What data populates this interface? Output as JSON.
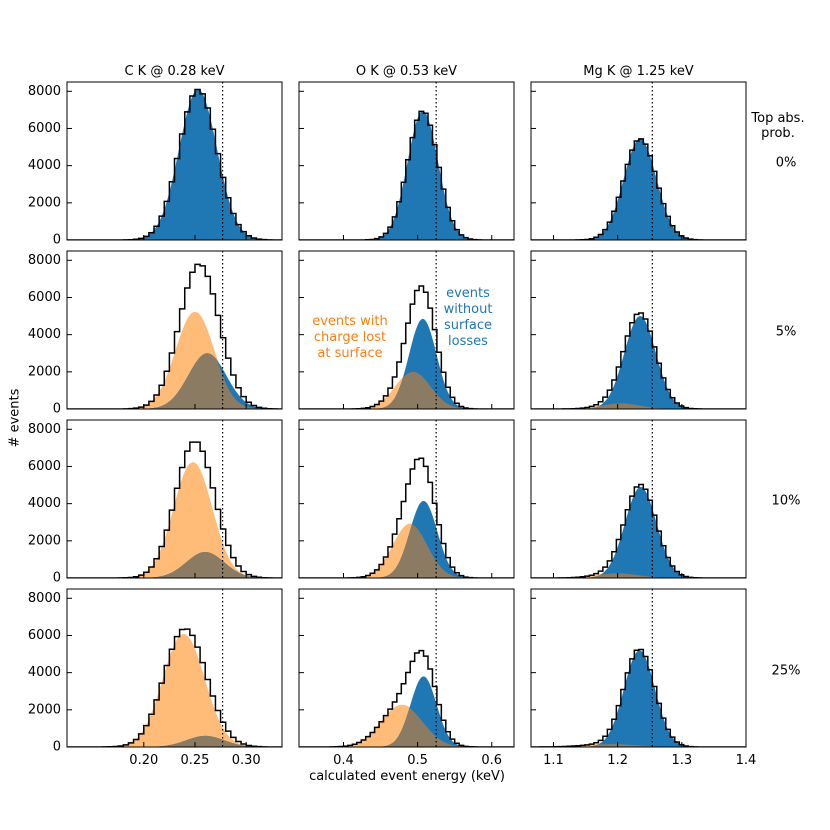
{
  "figure": {
    "ylabel": "# events",
    "xlabel": "calculated event energy (keV)",
    "row_header_title": "Top abs.\nprob.",
    "annotations": {
      "surface": "events with\ncharge lost\nat surface",
      "nosurface": "events\nwithout\nsurface\nlosses"
    }
  },
  "colors": {
    "blue": "#1f77b4",
    "orange": "#ffbb78",
    "overlap": "#8c7b63",
    "outline": "#000000",
    "orange_text": "#ff7f0e",
    "blue_text": "#1f77b4"
  },
  "chart_data": {
    "type": "histogram_grid",
    "columns": [
      {
        "title": "C K @ 0.28 keV",
        "line_energy": 0.277,
        "xlim": [
          0.125,
          0.335
        ],
        "xticks": [
          0.2,
          0.25,
          0.3
        ],
        "xtick_labels": [
          "0.20",
          "0.25",
          "0.30"
        ],
        "bin_width": 0.005
      },
      {
        "title": "O K @ 0.53 keV",
        "line_energy": 0.525,
        "xlim": [
          0.34,
          0.63
        ],
        "xticks": [
          0.4,
          0.5,
          0.6
        ],
        "xtick_labels": [
          "0.4",
          "0.5",
          "0.6"
        ],
        "bin_width": 0.006
      },
      {
        "title": "Mg K @ 1.25 keV",
        "line_energy": 1.254,
        "xlim": [
          1.065,
          1.4
        ],
        "xticks": [
          1.1,
          1.2,
          1.3,
          1.4
        ],
        "xtick_labels": [
          "1.1",
          "1.2",
          "1.3",
          "1.4"
        ],
        "bin_width": 0.007
      }
    ],
    "rows": [
      {
        "label": "0%"
      },
      {
        "label": "5%"
      },
      {
        "label": "10%"
      },
      {
        "label": "25%"
      }
    ],
    "ylim": [
      0,
      8500
    ],
    "yticks": [
      0,
      2000,
      4000,
      6000,
      8000
    ],
    "ytick_labels": [
      "0",
      "2000",
      "4000",
      "6000",
      "8000"
    ],
    "panels": [
      [
        {
          "blue": {
            "mu": 0.253,
            "sigma": 0.0185,
            "peak": 8100
          },
          "orange": null
        },
        {
          "blue": {
            "mu": 0.507,
            "sigma": 0.0205,
            "peak": 6950
          },
          "orange": null
        },
        {
          "blue": {
            "mu": 1.235,
            "sigma": 0.0255,
            "peak": 5450
          },
          "orange": null
        }
      ],
      [
        {
          "blue": {
            "mu": 0.262,
            "sigma": 0.0185,
            "peak": 3000
          },
          "orange": {
            "mu": 0.25,
            "sigma": 0.0185,
            "peak": 5200
          }
        },
        {
          "blue": {
            "mu": 0.507,
            "sigma": 0.0185,
            "peak": 4850
          },
          "orange": {
            "mu": 0.494,
            "sigma": 0.0235,
            "peak": 2000
          }
        },
        {
          "blue": {
            "mu": 1.235,
            "sigma": 0.0245,
            "peak": 5000
          },
          "orange": {
            "mu": 1.205,
            "sigma": 0.03,
            "peak": 300
          }
        }
      ],
      [
        {
          "blue": {
            "mu": 0.26,
            "sigma": 0.0185,
            "peak": 1400
          },
          "orange": {
            "mu": 0.248,
            "sigma": 0.0185,
            "peak": 6200
          }
        },
        {
          "blue": {
            "mu": 0.508,
            "sigma": 0.0185,
            "peak": 4150
          },
          "orange": {
            "mu": 0.49,
            "sigma": 0.023,
            "peak": 2900
          }
        },
        {
          "blue": {
            "mu": 1.236,
            "sigma": 0.0245,
            "peak": 4900
          },
          "orange": {
            "mu": 1.2,
            "sigma": 0.032,
            "peak": 250
          }
        }
      ],
      [
        {
          "blue": {
            "mu": 0.26,
            "sigma": 0.0185,
            "peak": 600
          },
          "orange": {
            "mu": 0.239,
            "sigma": 0.02,
            "peak": 6050
          }
        },
        {
          "blue": {
            "mu": 0.508,
            "sigma": 0.0175,
            "peak": 3800
          },
          "orange": {
            "mu": 0.479,
            "sigma": 0.0275,
            "peak": 2250
          }
        },
        {
          "blue": {
            "mu": 1.234,
            "sigma": 0.024,
            "peak": 5200
          },
          "orange": {
            "mu": 1.19,
            "sigma": 0.04,
            "peak": 150
          }
        }
      ]
    ]
  }
}
